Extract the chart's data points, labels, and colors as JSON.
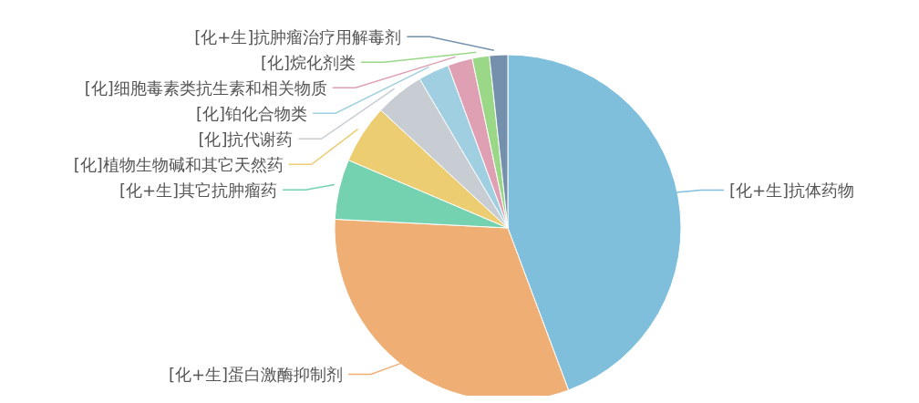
{
  "chart_data": {
    "type": "pie",
    "categories": [
      "[化+生]抗体药物",
      "[化+生]蛋白激酶抑制剂",
      "[化+生]其它抗肿瘤药",
      "[化]植物生物碱和其它天然药",
      "[化]抗代谢药",
      "[化]铂化合物类",
      "[化]细胞毒素类抗生素和相关物质",
      "[化]烷化剂类",
      "[化+生]抗肿瘤治疗用解毒剂"
    ],
    "values": [
      44.3,
      31.5,
      5.6,
      5.5,
      4.6,
      2.9,
      2.3,
      1.6,
      1.7
    ],
    "colors": [
      "#7fbfdc",
      "#eeae74",
      "#74d2b0",
      "#eccd72",
      "#c8ccd3",
      "#a0cfe2",
      "#dea0b2",
      "#9ad887",
      "#7490ac"
    ],
    "legend": false
  }
}
